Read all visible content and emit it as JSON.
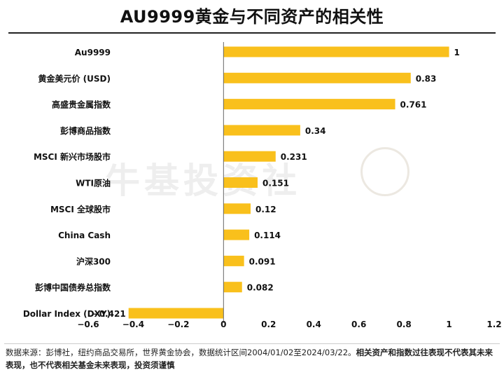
{
  "chart_data": {
    "type": "bar",
    "orientation": "horizontal",
    "title": "AU9999黄金与不同资产的相关性",
    "categories": [
      "Au9999",
      "黄金美元价 (USD)",
      "高盛贵金属指数",
      "彭博商品指数",
      "MSCI 新兴市场股市",
      "WTI原油",
      "MSCI 全球股市",
      "China Cash",
      "沪深300",
      "彭博中国债券总指数",
      "Dollar Index (DXY)"
    ],
    "values": [
      1,
      0.83,
      0.761,
      0.34,
      0.231,
      0.151,
      0.12,
      0.114,
      0.091,
      0.082,
      -0.421
    ],
    "value_labels": [
      "1",
      "0.83",
      "0.761",
      "0.34",
      "0.231",
      "0.151",
      "0.12",
      "0.114",
      "0.091",
      "0.082",
      "−0.421"
    ],
    "xlim": [
      -0.6,
      1.2
    ],
    "xticks": [
      -0.6,
      -0.4,
      -0.2,
      0,
      0.2,
      0.4,
      0.6,
      0.8,
      1,
      1.2
    ],
    "xtick_labels": [
      "−0.6",
      "−0.4",
      "−0.2",
      "0",
      "0.2",
      "0.4",
      "0.6",
      "0.8",
      "1",
      "1.2"
    ],
    "bar_color": "#F9C01C",
    "grid": false,
    "legend": "none"
  },
  "footer": {
    "source": "数据来源：彭博社，纽约商品交易所，世界黄金协会，数据统计区间2004/01/02至2024/03/22。",
    "disclaimer": "相关资产和指数过往表现不代表其未来表现，也不代表相关基金未来表现，投资须谨慎"
  },
  "watermark": {
    "text": "牛基投资社",
    "mascot": "bull-mascot-icon"
  }
}
